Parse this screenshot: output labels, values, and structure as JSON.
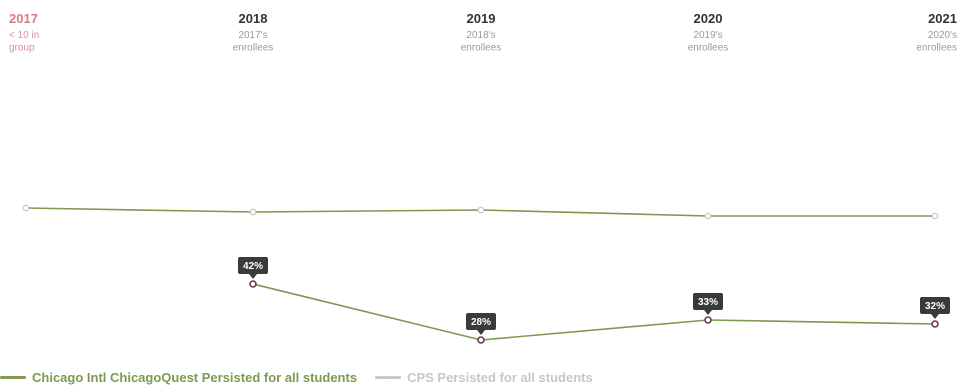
{
  "colors": {
    "school": "#7d9a4f",
    "cps": "#c8c8c8",
    "label_bg": "#3a3a3a",
    "muted_year": "#d97a84"
  },
  "chart_data": {
    "type": "line",
    "x": [
      "2017",
      "2018",
      "2019",
      "2020",
      "2021"
    ],
    "header_sublabels": [
      [
        "< 10 in",
        "group"
      ],
      [
        "2017's",
        "enrollees"
      ],
      [
        "2018's",
        "enrollees"
      ],
      [
        "2019's",
        "enrollees"
      ],
      [
        "2020's",
        "enrollees"
      ]
    ],
    "ylim": [
      0,
      100
    ],
    "series": [
      {
        "name": "Chicago Intl ChicagoQuest Persisted for all students",
        "color": "#7d9a4f",
        "values": [
          null,
          42,
          28,
          33,
          32
        ],
        "labels": [
          null,
          "42%",
          "28%",
          "33%",
          "32%"
        ]
      },
      {
        "name": "CPS Persisted for all students",
        "color": "#c8c8c8",
        "values": [
          61,
          60,
          60.5,
          59,
          59
        ]
      }
    ]
  }
}
